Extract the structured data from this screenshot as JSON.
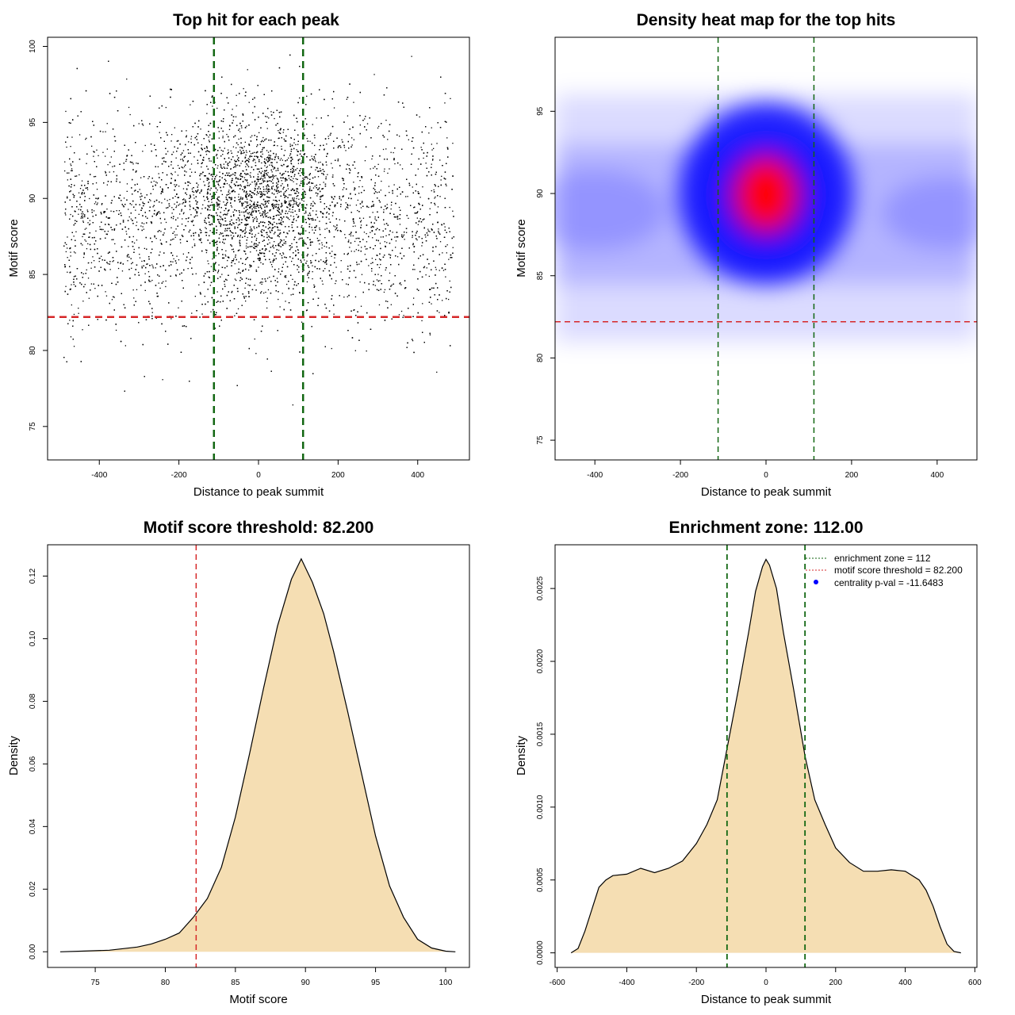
{
  "colors": {
    "threshold_line": "#d62728",
    "zone_line": "#116611",
    "density_fill": "#f5deb3",
    "points": "#000000",
    "heat_low": "#ffffff",
    "heat_mid": "#0000ff",
    "heat_high": "#ff0000"
  },
  "chart_data": [
    {
      "type": "scatter",
      "title": "Top hit for each peak",
      "xlabel": "Distance to peak summit",
      "ylabel": "Motif score",
      "xlim": [
        -530,
        530
      ],
      "ylim": [
        72.8,
        100.6
      ],
      "xticks": [
        -400,
        -200,
        0,
        200,
        400
      ],
      "yticks": [
        75,
        80,
        85,
        90,
        95,
        100
      ],
      "threshold_y": 82.2,
      "zone_x": [
        -112,
        112
      ],
      "points_description": "dense cloud of top hits: x uniform in [-500,500] with concentration near 0; y approximately normal around 89 (sd ~3.5), central cluster around 90"
    },
    {
      "type": "heatmap",
      "title": "Density heat map for the top hits",
      "xlabel": "Distance to peak summit",
      "ylabel": "Motif score",
      "xlim": [
        -493,
        493
      ],
      "ylim": [
        73.8,
        99.5
      ],
      "xticks": [
        -400,
        -200,
        0,
        200,
        400
      ],
      "yticks": [
        75,
        80,
        85,
        90,
        95
      ],
      "threshold_y": 82.2,
      "zone_x": [
        -112,
        112
      ],
      "density_peak": {
        "x": 0,
        "y": 90
      },
      "color_scale": [
        "white",
        "blue",
        "red"
      ]
    },
    {
      "type": "area",
      "title": "Motif score threshold: 82.200",
      "xlabel": "Motif score",
      "ylabel": "Density",
      "xlim": [
        71.6,
        101.7
      ],
      "ylim": [
        -0.005,
        0.13
      ],
      "xticks": [
        75,
        80,
        85,
        90,
        95,
        100
      ],
      "yticks": [
        0.0,
        0.02,
        0.04,
        0.06,
        0.08,
        0.1,
        0.12
      ],
      "ytick_labels": [
        "0.00",
        "0.02",
        "0.04",
        "0.06",
        "0.08",
        "0.10",
        "0.12"
      ],
      "threshold_x": 82.2,
      "x": [
        72.5,
        74,
        76,
        78,
        79,
        80,
        81,
        82,
        83,
        84,
        85,
        86,
        87,
        88,
        89,
        89.7,
        90.5,
        91.3,
        92,
        93,
        94,
        95,
        96,
        97,
        98,
        99,
        100,
        100.7
      ],
      "y": [
        0.0,
        0.0002,
        0.0005,
        0.0015,
        0.0025,
        0.004,
        0.006,
        0.011,
        0.017,
        0.027,
        0.043,
        0.063,
        0.084,
        0.104,
        0.119,
        0.1255,
        0.118,
        0.108,
        0.096,
        0.077,
        0.057,
        0.037,
        0.021,
        0.011,
        0.004,
        0.0012,
        0.0002,
        0.0
      ]
    },
    {
      "type": "area",
      "title": "Enrichment zone: 112.00",
      "xlabel": "Distance to peak summit",
      "ylabel": "Density",
      "xlim": [
        -606,
        606
      ],
      "ylim": [
        -0.0001,
        0.0028
      ],
      "xticks": [
        -600,
        -400,
        -200,
        0,
        200,
        400,
        600
      ],
      "yticks": [
        0.0,
        0.0005,
        0.001,
        0.0015,
        0.002,
        0.0025
      ],
      "ytick_labels": [
        "0.0000",
        "0.0005",
        "0.0010",
        "0.0015",
        "0.0020",
        "0.0025"
      ],
      "zone_x": [
        -112,
        112
      ],
      "x": [
        -560,
        -540,
        -520,
        -500,
        -480,
        -460,
        -440,
        -400,
        -360,
        -320,
        -280,
        -240,
        -200,
        -170,
        -140,
        -112,
        -80,
        -50,
        -30,
        -10,
        0,
        10,
        30,
        50,
        80,
        112,
        140,
        170,
        200,
        240,
        280,
        320,
        360,
        400,
        440,
        460,
        480,
        500,
        520,
        540,
        560
      ],
      "y": [
        0.0,
        3e-05,
        0.00015,
        0.0003,
        0.00045,
        0.0005,
        0.00053,
        0.00054,
        0.00058,
        0.00055,
        0.00058,
        0.00063,
        0.00075,
        0.00088,
        0.00105,
        0.0014,
        0.0018,
        0.0022,
        0.00248,
        0.00265,
        0.0027,
        0.00266,
        0.0025,
        0.0022,
        0.0018,
        0.00135,
        0.00105,
        0.00088,
        0.00072,
        0.00062,
        0.00056,
        0.00056,
        0.00057,
        0.00056,
        0.0005,
        0.00043,
        0.00032,
        0.00018,
        6e-05,
        1e-05,
        0.0
      ],
      "legend": {
        "position": "top-right",
        "items": [
          {
            "label": "enrichment zone = 112",
            "style": "dotted",
            "color": "#116611"
          },
          {
            "label": "motif score threshold = 82.200",
            "style": "dotted",
            "color": "#d62728"
          },
          {
            "label": "centrality p-val = -11.6483",
            "style": "point",
            "color": "#0000ff"
          }
        ]
      }
    }
  ]
}
